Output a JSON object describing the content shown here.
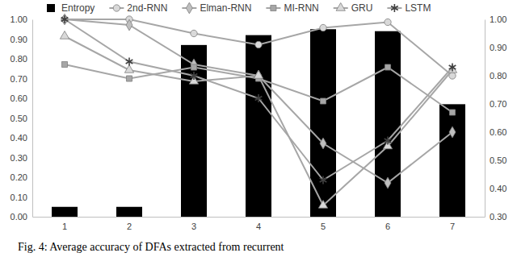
{
  "chart_data": {
    "type": "bar",
    "title": "Fig. 4: Average accuracy of DFAs extracted from recurrent",
    "categories": [
      "1",
      "2",
      "3",
      "4",
      "5",
      "6",
      "7"
    ],
    "ylim": [
      0,
      1
    ],
    "yticks": [
      {
        "value": 0,
        "label": "0.00"
      },
      {
        "value": 0.1,
        "label": "0.10"
      },
      {
        "value": 0.2,
        "label": "0.20"
      },
      {
        "value": 0.3,
        "label": "0.30"
      },
      {
        "value": 0.4,
        "label": "0.40"
      },
      {
        "value": 0.5,
        "label": "0.50"
      },
      {
        "value": 0.6,
        "label": "0.60"
      },
      {
        "value": 0.7,
        "label": "0.70"
      },
      {
        "value": 0.8,
        "label": "0.80"
      },
      {
        "value": 0.9,
        "label": "0.90"
      },
      {
        "value": 1,
        "label": "1.00"
      }
    ],
    "y2lim": [
      0.3,
      1
    ],
    "y2ticks": [
      {
        "value": 0.3,
        "label": "0.30"
      },
      {
        "value": 0.4,
        "label": "0.40"
      },
      {
        "value": 0.5,
        "label": "0.50"
      },
      {
        "value": 0.6,
        "label": "0.60"
      },
      {
        "value": 0.7,
        "label": "0.70"
      },
      {
        "value": 0.8,
        "label": "0.80"
      },
      {
        "value": 0.9,
        "label": "0.90"
      },
      {
        "value": 1,
        "label": "1.00"
      }
    ],
    "legend": "top",
    "grid": false,
    "series": [
      {
        "name": "Entropy",
        "type": "bar",
        "color": "#000000",
        "values": [
          0.05,
          0.05,
          0.87,
          0.92,
          0.95,
          0.94,
          0.57
        ]
      },
      {
        "name": "2nd-RNN",
        "type": "line",
        "axis": "y2",
        "color": "#a6a6a6",
        "marker": "circle",
        "values": [
          1.0,
          1.0,
          0.95,
          0.91,
          0.97,
          0.99,
          0.8
        ]
      },
      {
        "name": "Elman-RNN",
        "type": "line",
        "axis": "y2",
        "color": "#a6a6a6",
        "marker": "diamond",
        "values": [
          1.0,
          0.98,
          0.84,
          0.8,
          0.56,
          0.42,
          0.6
        ]
      },
      {
        "name": "MI-RNN",
        "type": "line",
        "axis": "y2",
        "color": "#a6a6a6",
        "marker": "square",
        "values": [
          0.84,
          0.79,
          0.83,
          0.79,
          0.71,
          0.83,
          0.67
        ]
      },
      {
        "name": "GRU",
        "type": "line",
        "axis": "y2",
        "color": "#a6a6a6",
        "marker": "triangle",
        "values": [
          0.94,
          0.82,
          0.78,
          0.8,
          0.34,
          0.55,
          0.82
        ]
      },
      {
        "name": "LSTM",
        "type": "line",
        "axis": "y2",
        "color": "#a6a6a6",
        "marker": "asterisk",
        "values": [
          1.0,
          0.85,
          0.8,
          0.72,
          0.43,
          0.57,
          0.83
        ]
      }
    ]
  }
}
